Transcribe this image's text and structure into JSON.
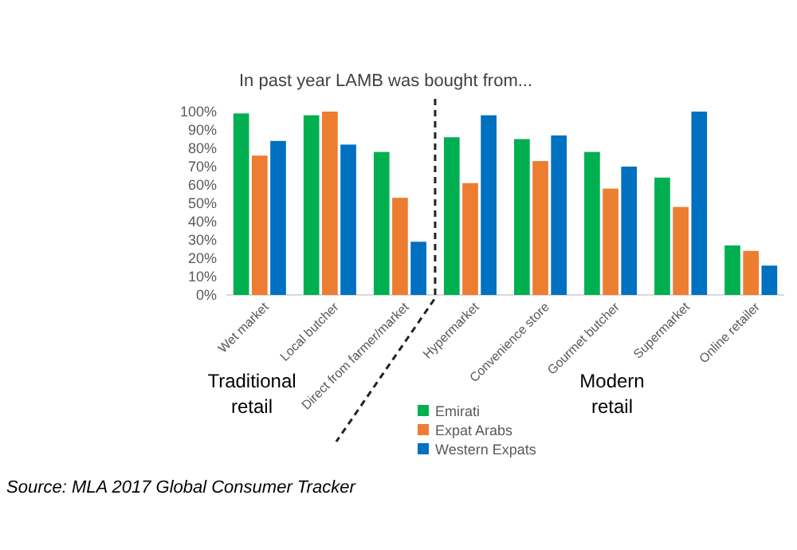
{
  "chart_data": {
    "type": "bar",
    "title": "In past year LAMB was bought from...",
    "categories": [
      "Wet market",
      "Local butcher",
      "Direct from farmer/market",
      "Hypermarket",
      "Convenience store",
      "Gourmet butcher",
      "Supermarket",
      "Online retailer"
    ],
    "series": [
      {
        "name": "Emirati",
        "color": "#00b050",
        "values": [
          99,
          98,
          78,
          86,
          85,
          78,
          64,
          27
        ]
      },
      {
        "name": "Expat Arabs",
        "color": "#ed7d31",
        "values": [
          76,
          100,
          53,
          61,
          73,
          58,
          48,
          24
        ]
      },
      {
        "name": "Western Expats",
        "color": "#0070c0",
        "values": [
          84,
          82,
          29,
          98,
          87,
          70,
          100,
          16
        ]
      }
    ],
    "ylim": [
      0,
      100
    ],
    "yticks": [
      {
        "value": 0,
        "label": "0%"
      },
      {
        "value": 10,
        "label": "10%"
      },
      {
        "value": 20,
        "label": "20%"
      },
      {
        "value": 30,
        "label": "30%"
      },
      {
        "value": 40,
        "label": "40%"
      },
      {
        "value": 50,
        "label": "50%"
      },
      {
        "value": 60,
        "label": "60%"
      },
      {
        "value": 70,
        "label": "70%"
      },
      {
        "value": 80,
        "label": "80%"
      },
      {
        "value": 90,
        "label": "90%"
      },
      {
        "value": 100,
        "label": "100%"
      }
    ],
    "grid": false,
    "legend": "bottom",
    "annotations": [
      "Traditional retail",
      "Modern retail",
      "Source: MLA 2017 Global Consumer Tracker"
    ]
  }
}
